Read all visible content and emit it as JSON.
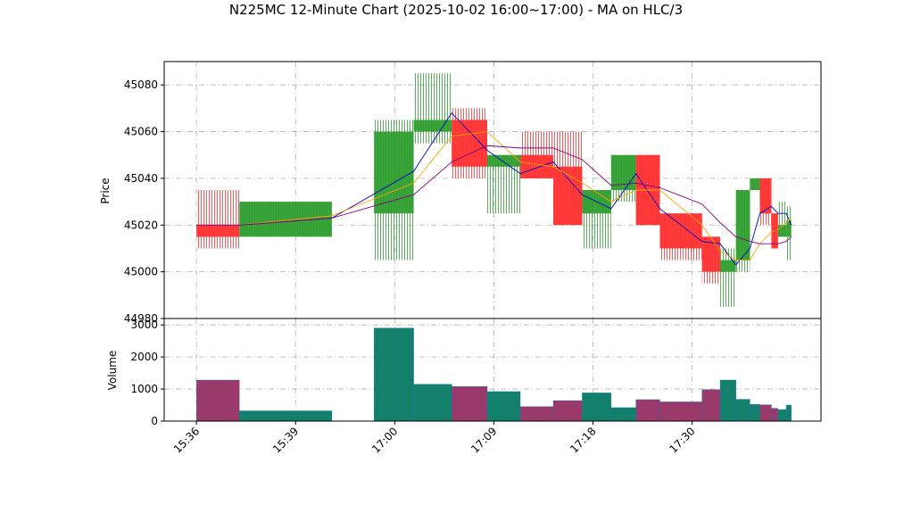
{
  "chart_data": {
    "type": "candlestick",
    "title": "N225MC 12-Minute Chart (2025-10-02 16:00~17:00) - MA on HLC/3",
    "ylabel": "Price",
    "volume_label": "Volume",
    "up_color": "#2f9e2f",
    "down_color": "#ff3030",
    "up_volume_color": "#12806a",
    "down_volume_color": "#9a3a6a",
    "grid": true,
    "xlim": [
      -3.9,
      75.6
    ],
    "xticks": [
      {
        "value": 0,
        "label": "15:36"
      },
      {
        "value": 12,
        "label": "15:39"
      },
      {
        "value": 24,
        "label": "17:00"
      },
      {
        "value": 36,
        "label": "17:09"
      },
      {
        "value": 48,
        "label": "17:18"
      },
      {
        "value": 60,
        "label": "17:30"
      }
    ],
    "ylim": [
      44980,
      45090
    ],
    "yticks": [
      44980,
      45000,
      45020,
      45040,
      45060,
      45080
    ],
    "volume_ylim": [
      0,
      3200
    ],
    "volume_yticks": [
      0,
      1000,
      2000,
      3000
    ],
    "candles": [
      {
        "x0": 0,
        "x1": 5.2,
        "open": 45020,
        "high": 45035,
        "low": 45010,
        "close": 45015,
        "volume": 1280
      },
      {
        "x0": 5.2,
        "x1": 16.4,
        "open": 45015,
        "high": 45030,
        "low": 45015,
        "close": 45030,
        "volume": 320
      },
      {
        "x0": 21.5,
        "x1": 26.3,
        "open": 45025,
        "high": 45065,
        "low": 45005,
        "close": 45060,
        "volume": 2900
      },
      {
        "x0": 26.3,
        "x1": 30.9,
        "open": 45060,
        "high": 45085,
        "low": 45055,
        "close": 45065,
        "volume": 1150
      },
      {
        "x0": 30.9,
        "x1": 35.2,
        "open": 45065,
        "high": 45070,
        "low": 45040,
        "close": 45045,
        "volume": 1080
      },
      {
        "x0": 35.2,
        "x1": 39.2,
        "open": 45045,
        "high": 45050,
        "low": 45025,
        "close": 45050,
        "volume": 920
      },
      {
        "x0": 39.2,
        "x1": 43.2,
        "open": 45050,
        "high": 45060,
        "low": 45040,
        "close": 45040,
        "volume": 450
      },
      {
        "x0": 43.2,
        "x1": 46.7,
        "open": 45045,
        "high": 45060,
        "low": 45020,
        "close": 45020,
        "volume": 640
      },
      {
        "x0": 46.7,
        "x1": 50.2,
        "open": 45025,
        "high": 45035,
        "low": 45010,
        "close": 45035,
        "volume": 880
      },
      {
        "x0": 50.2,
        "x1": 53.2,
        "open": 45035,
        "high": 45050,
        "low": 45030,
        "close": 45050,
        "volume": 420
      },
      {
        "x0": 53.2,
        "x1": 56.1,
        "open": 45050,
        "high": 45050,
        "low": 45020,
        "close": 45020,
        "volume": 670
      },
      {
        "x0": 56.1,
        "x1": 61.2,
        "open": 45025,
        "high": 45025,
        "low": 45005,
        "close": 45010,
        "volume": 600
      },
      {
        "x0": 61.2,
        "x1": 63.4,
        "open": 45015,
        "high": 45015,
        "low": 44995,
        "close": 45000,
        "volume": 980
      },
      {
        "x0": 63.4,
        "x1": 65.3,
        "open": 45000,
        "high": 45010,
        "low": 44985,
        "close": 45005,
        "volume": 1280
      },
      {
        "x0": 65.3,
        "x1": 67.0,
        "open": 45005,
        "high": 45035,
        "low": 45000,
        "close": 45035,
        "volume": 680
      },
      {
        "x0": 67.0,
        "x1": 68.2,
        "open": 45035,
        "high": 45040,
        "low": 45035,
        "close": 45040,
        "volume": 520
      },
      {
        "x0": 68.2,
        "x1": 69.6,
        "open": 45040,
        "high": 45040,
        "low": 45020,
        "close": 45025,
        "volume": 510
      },
      {
        "x0": 69.6,
        "x1": 70.4,
        "open": 45025,
        "high": 45025,
        "low": 45010,
        "close": 45010,
        "volume": 400
      },
      {
        "x0": 70.4,
        "x1": 71.4,
        "open": 45015,
        "high": 45030,
        "low": 45015,
        "close": 45020,
        "volume": 360
      },
      {
        "x0": 71.4,
        "x1": 72.0,
        "open": 45015,
        "high": 45028,
        "low": 45005,
        "close": 45022,
        "volume": 500
      }
    ],
    "ma_x": [
      0,
      5.2,
      16.4,
      26.3,
      30.9,
      35.2,
      39.2,
      43.2,
      46.7,
      50.2,
      53.2,
      56.1,
      61.2,
      63.4,
      65.3,
      67.0,
      68.2,
      69.6,
      70.4,
      71.4,
      72.0
    ],
    "ma_series": [
      {
        "color": "#0000cc",
        "values": [
          45020,
          45020,
          45023,
          45043,
          45068,
          45052,
          45042,
          45047,
          45033,
          45027,
          45042,
          45027,
          45013,
          45012,
          45003,
          45010,
          45025,
          45028,
          45025,
          45025,
          45020
        ]
      },
      {
        "color": "#ffa500",
        "values": [
          45020,
          45020,
          45024,
          45038,
          45058,
          45060,
          45047,
          45045,
          45038,
          45030,
          45035,
          45035,
          45020,
          45009,
          45005,
          45005,
          45012,
          45017,
          45018,
          45021,
          45023
        ]
      },
      {
        "color": "#800080",
        "values": [
          45020,
          45020,
          45023,
          45033,
          45047,
          45054,
          45053,
          45053,
          45048,
          45037,
          45038,
          45036,
          45029,
          45021,
          45015,
          45013,
          45012,
          45012,
          45012,
          45013,
          45015
        ]
      }
    ]
  }
}
